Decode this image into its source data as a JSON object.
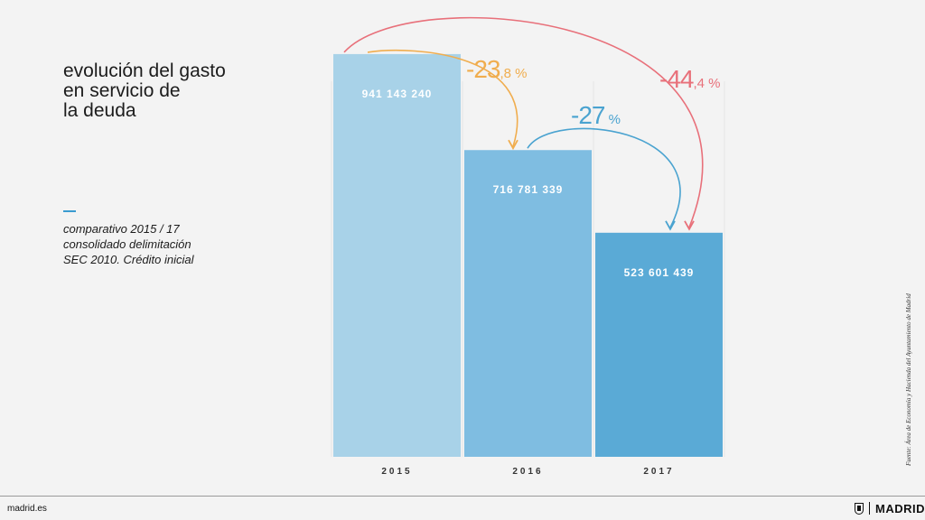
{
  "title_lines": [
    "evolución del gasto",
    "en servicio de",
    "la deuda"
  ],
  "subtitle_lines": [
    "comparativo 2015 / 17",
    "consolidado delimitación",
    "SEC 2010. Crédito inicial"
  ],
  "source": "Fuente: Área de Economía y Hacienda del Ayuntamiento de Madrid",
  "footer": {
    "site": "madrid.es",
    "logo_text": "MADRID"
  },
  "colors": {
    "accent": "#3a9bd0",
    "orange": "#f0ad4e",
    "blue": "#4aa3d0",
    "red": "#e8707a"
  },
  "chart_data": {
    "type": "bar",
    "categories": [
      "2015",
      "2016",
      "2017"
    ],
    "values": [
      941143240,
      716781339,
      523601439
    ],
    "value_labels": [
      "941 143 240",
      "716 781 339",
      "523 601 439"
    ],
    "bar_colors": [
      "#a8d2e8",
      "#7fbde1",
      "#5aaad6"
    ],
    "ylim": [
      0,
      1000000000
    ],
    "grid": false,
    "annotations": [
      {
        "from": "2015",
        "to": "2016",
        "big": "-23",
        "small": ",8 %",
        "color": "#f0ad4e"
      },
      {
        "from": "2016",
        "to": "2017",
        "big": "-27",
        "small": " %",
        "color": "#4aa3d0"
      },
      {
        "from": "2015",
        "to": "2017",
        "big": "-44",
        "small": ",4 %",
        "color": "#e8707a"
      }
    ]
  }
}
